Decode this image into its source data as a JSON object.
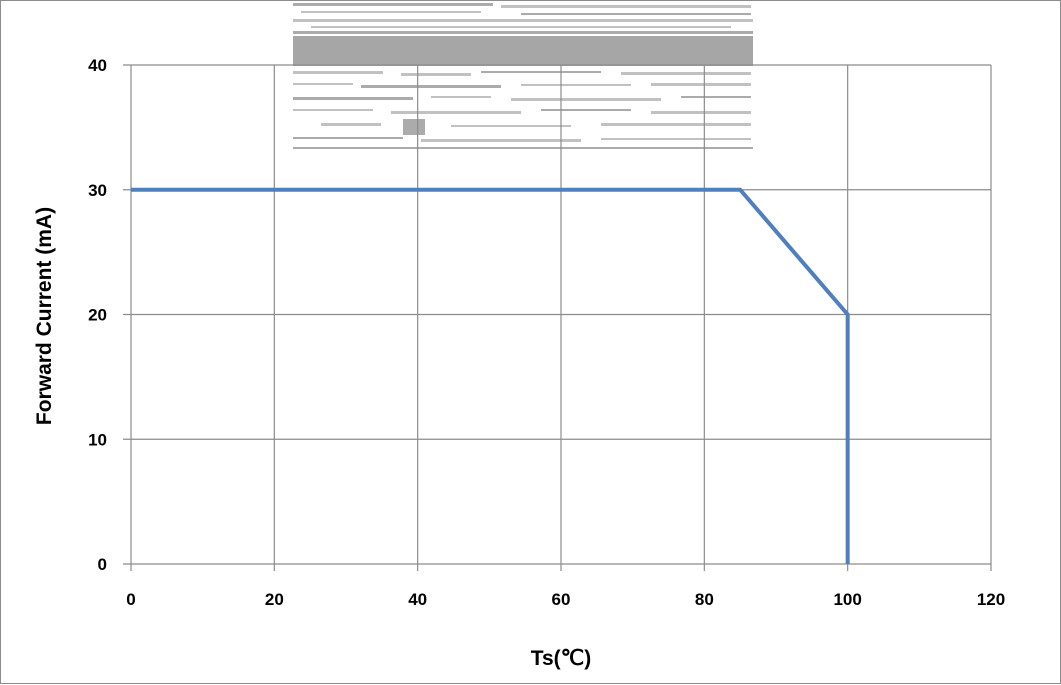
{
  "chart_data": {
    "type": "line",
    "title": "",
    "xlabel": "Ts(℃)",
    "ylabel": "Forward Current (mA)",
    "xlim": [
      0,
      120
    ],
    "ylim": [
      0,
      40
    ],
    "x_ticks": [
      0,
      20,
      40,
      60,
      80,
      100,
      120
    ],
    "y_ticks": [
      0,
      10,
      20,
      30,
      40
    ],
    "grid": true,
    "legend": "none",
    "series": [
      {
        "color": "#4f7fbd",
        "points": [
          {
            "x": 0,
            "y": 30
          },
          {
            "x": 85,
            "y": 30
          },
          {
            "x": 100,
            "y": 20
          },
          {
            "x": 100,
            "y": 0
          }
        ]
      }
    ],
    "gridline_color": "#8c8c8c",
    "watermark_color": "#a6a6a6"
  }
}
